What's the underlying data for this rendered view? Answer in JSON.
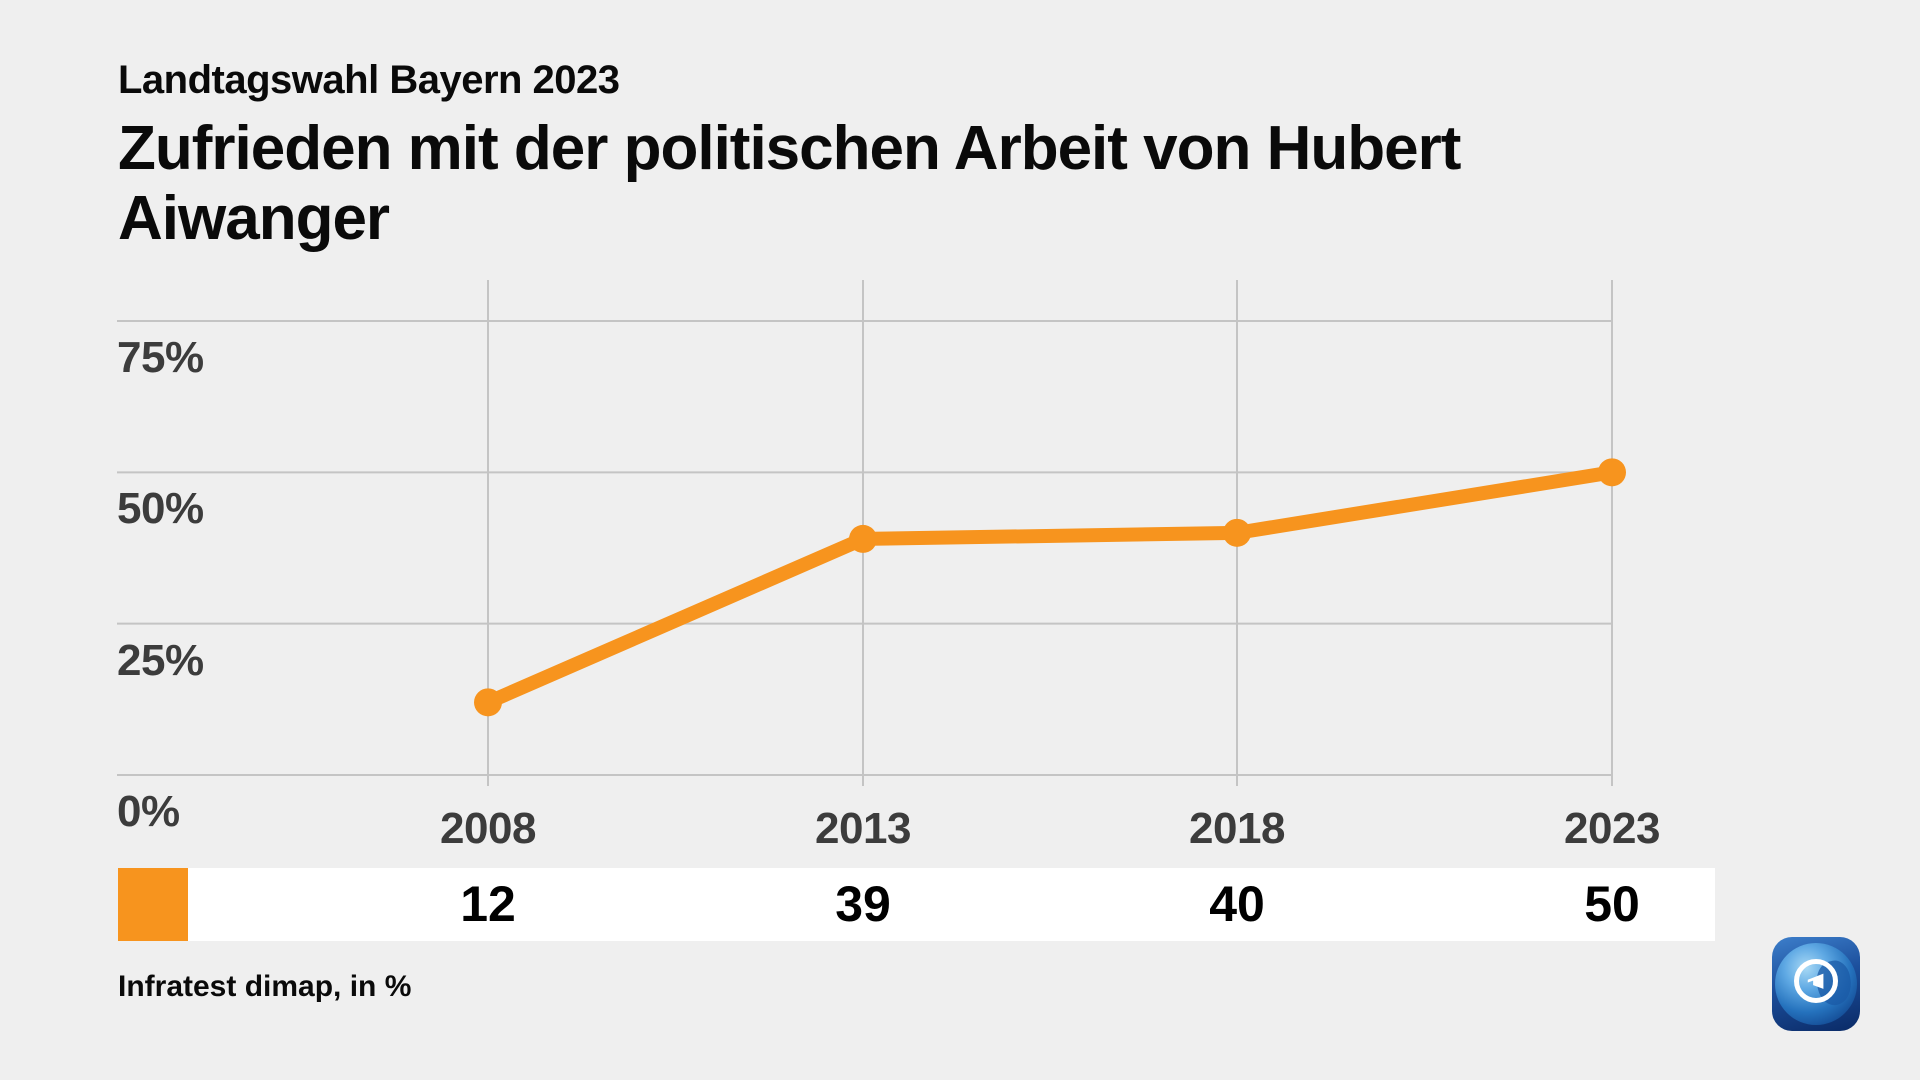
{
  "page": {
    "eyebrow": "Landtagswahl Bayern 2023",
    "title_lines": [
      "Zufrieden mit der politischen Arbeit von Hubert",
      "Aiwanger"
    ],
    "source": "Infratest dimap, in %"
  },
  "colors": {
    "background": "#EFEFEF",
    "grid": "#C4C4C4",
    "axis_text": "#3C3C3C",
    "text": "#000000",
    "strip_background": "#FFFFFF",
    "accent_orange": "#F7941E",
    "logo_blue": "#1C4F9C"
  },
  "icons": {
    "logo": "ard-tagesschau-globe-icon"
  },
  "chart_data": {
    "type": "line",
    "title": "Zufrieden mit der politischen Arbeit von Hubert Aiwanger",
    "subtitle": "Landtagswahl Bayern 2023",
    "source": "Infratest dimap, in %",
    "unit": "%",
    "x": [
      "2008",
      "2013",
      "2018",
      "2023"
    ],
    "series": [
      {
        "name": "Zufrieden mit der politischen Arbeit von Hubert Aiwanger",
        "color": "#F7941E",
        "values": [
          12,
          39,
          40,
          50
        ]
      }
    ],
    "value_row_labels": [
      "12",
      "39",
      "40",
      "50"
    ],
    "y_gridlines": [
      {
        "label": "75%",
        "value": 75
      },
      {
        "label": "50%",
        "value": 50
      },
      {
        "label": "25%",
        "value": 25
      },
      {
        "label": "0%",
        "value": 0
      }
    ],
    "ylim": [
      0,
      82
    ],
    "grid": true,
    "legend_position": "bottom-row-swatch"
  }
}
